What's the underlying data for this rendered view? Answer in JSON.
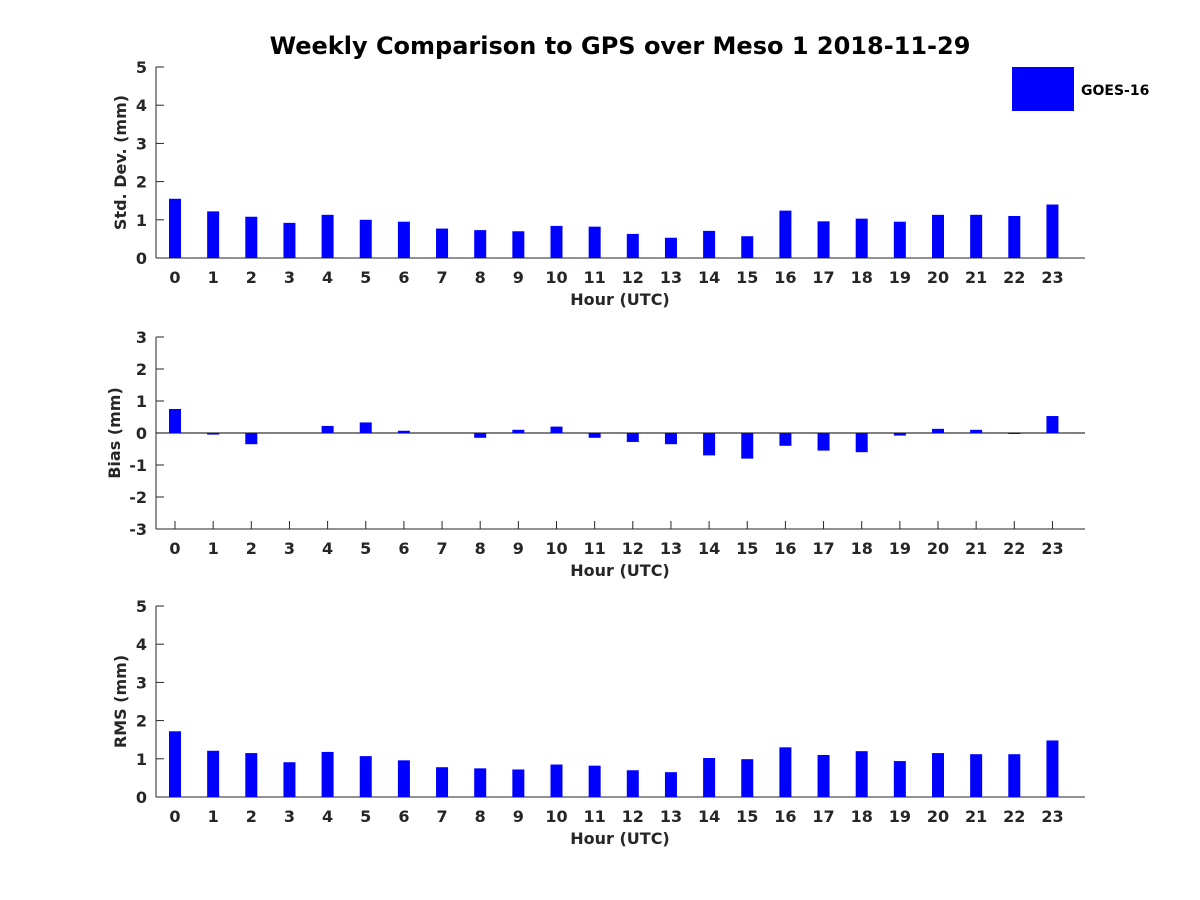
{
  "title": "Weekly Comparison to GPS over Meso 1 2018-11-29",
  "legend": {
    "label": "GOES-16",
    "color": "#0000ff"
  },
  "chart_data": [
    {
      "type": "bar",
      "name": "std-dev",
      "xlabel": "Hour (UTC)",
      "ylabel": "Std. Dev. (mm)",
      "ylim": [
        0,
        5
      ],
      "yticks": [
        0,
        1,
        2,
        3,
        4,
        5
      ],
      "categories": [
        "0",
        "1",
        "2",
        "3",
        "4",
        "5",
        "6",
        "7",
        "8",
        "9",
        "10",
        "11",
        "12",
        "13",
        "14",
        "15",
        "16",
        "17",
        "18",
        "19",
        "20",
        "21",
        "22",
        "23"
      ],
      "series": [
        {
          "name": "GOES-16",
          "values": [
            1.55,
            1.22,
            1.08,
            0.92,
            1.13,
            1.0,
            0.95,
            0.77,
            0.73,
            0.7,
            0.84,
            0.82,
            0.63,
            0.53,
            0.71,
            0.57,
            1.24,
            0.96,
            1.03,
            0.95,
            1.13,
            1.13,
            1.1,
            1.4
          ]
        }
      ]
    },
    {
      "type": "bar",
      "name": "bias",
      "xlabel": "Hour (UTC)",
      "ylabel": "Bias (mm)",
      "ylim": [
        -3,
        3
      ],
      "yticks": [
        -3,
        -2,
        -1,
        0,
        1,
        2,
        3
      ],
      "categories": [
        "0",
        "1",
        "2",
        "3",
        "4",
        "5",
        "6",
        "7",
        "8",
        "9",
        "10",
        "11",
        "12",
        "13",
        "14",
        "15",
        "16",
        "17",
        "18",
        "19",
        "20",
        "21",
        "22",
        "23"
      ],
      "series": [
        {
          "name": "GOES-16",
          "values": [
            0.75,
            -0.05,
            -0.35,
            0.0,
            0.22,
            0.33,
            0.07,
            0.0,
            -0.15,
            0.1,
            0.2,
            -0.15,
            -0.28,
            -0.35,
            -0.7,
            -0.8,
            -0.4,
            -0.55,
            -0.6,
            -0.08,
            0.13,
            0.1,
            -0.02,
            0.53
          ]
        }
      ]
    },
    {
      "type": "bar",
      "name": "rms",
      "xlabel": "Hour (UTC)",
      "ylabel": "RMS (mm)",
      "ylim": [
        0,
        5
      ],
      "yticks": [
        0,
        1,
        2,
        3,
        4,
        5
      ],
      "categories": [
        "0",
        "1",
        "2",
        "3",
        "4",
        "5",
        "6",
        "7",
        "8",
        "9",
        "10",
        "11",
        "12",
        "13",
        "14",
        "15",
        "16",
        "17",
        "18",
        "19",
        "20",
        "21",
        "22",
        "23"
      ],
      "series": [
        {
          "name": "GOES-16",
          "values": [
            1.72,
            1.21,
            1.15,
            0.91,
            1.18,
            1.07,
            0.96,
            0.78,
            0.75,
            0.72,
            0.85,
            0.82,
            0.7,
            0.65,
            1.02,
            0.99,
            1.3,
            1.1,
            1.2,
            0.94,
            1.15,
            1.12,
            1.12,
            1.48
          ]
        }
      ]
    }
  ]
}
